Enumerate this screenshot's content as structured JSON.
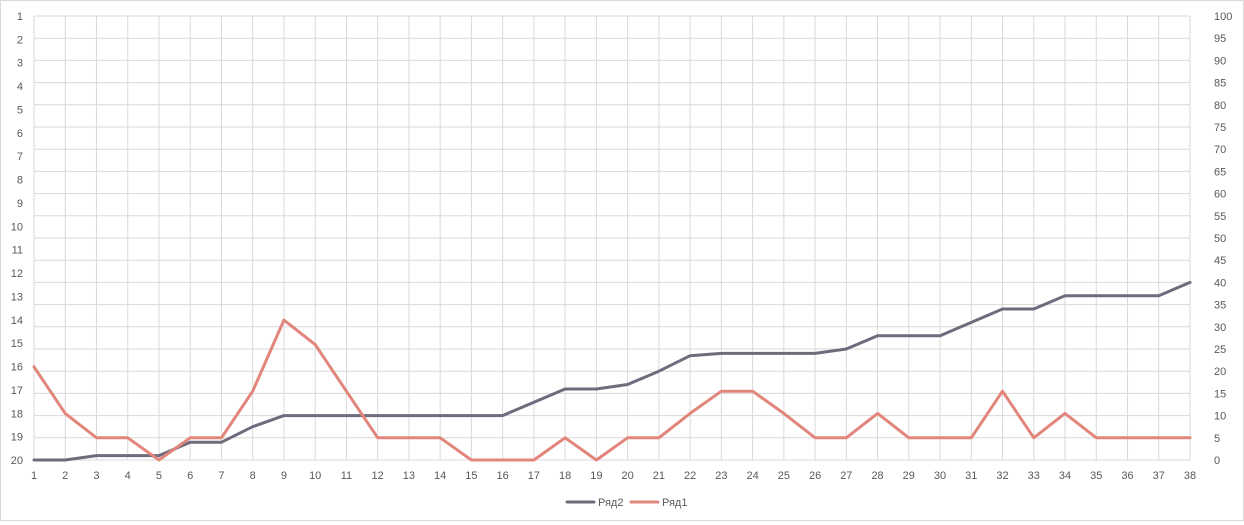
{
  "chart_data": {
    "type": "line",
    "categories": [
      "1",
      "2",
      "3",
      "4",
      "5",
      "6",
      "7",
      "8",
      "9",
      "10",
      "11",
      "12",
      "13",
      "14",
      "15",
      "16",
      "17",
      "18",
      "19",
      "20",
      "21",
      "22",
      "23",
      "24",
      "25",
      "26",
      "27",
      "28",
      "29",
      "30",
      "31",
      "32",
      "33",
      "34",
      "35",
      "36",
      "37",
      "38"
    ],
    "left_axis": {
      "ticks": [
        "1",
        "2",
        "3",
        "4",
        "5",
        "6",
        "7",
        "8",
        "9",
        "10",
        "11",
        "12",
        "13",
        "14",
        "15",
        "16",
        "17",
        "18",
        "19",
        "20"
      ],
      "range": [
        1,
        20
      ],
      "reversed": true
    },
    "right_axis": {
      "ticks": [
        "0",
        "5",
        "10",
        "15",
        "20",
        "25",
        "30",
        "35",
        "40",
        "45",
        "50",
        "55",
        "60",
        "65",
        "70",
        "75",
        "80",
        "85",
        "90",
        "95",
        "100"
      ],
      "range": [
        0,
        100
      ]
    },
    "series": [
      {
        "name": "Ряд2",
        "color": "#6f6b7d",
        "axis": "right",
        "values": [
          0,
          0,
          1,
          1,
          1,
          4,
          4,
          7.5,
          10,
          10,
          10,
          10,
          10,
          10,
          10,
          10,
          13,
          16,
          16,
          17,
          20,
          23.5,
          24,
          24,
          24,
          24,
          25,
          28,
          28,
          28,
          31,
          34,
          34,
          37,
          37,
          37,
          37,
          40
        ]
      },
      {
        "name": "Ряд1",
        "color": "#e2857a",
        "axis": "right",
        "values": [
          21,
          10.5,
          5,
          5,
          0,
          5,
          5,
          15.5,
          31.5,
          26,
          15.5,
          5,
          5,
          5,
          0,
          0,
          0,
          5,
          0,
          5,
          5,
          10.5,
          15.5,
          15.5,
          10.5,
          5,
          5,
          10.5,
          5,
          5,
          5,
          15.5,
          5,
          10.5,
          5,
          5,
          5,
          5
        ]
      }
    ],
    "legend": {
      "position": "bottom",
      "order": [
        "Ряд2",
        "Ряд1"
      ]
    },
    "grid": true,
    "grid_color": "#d9d9d9"
  }
}
